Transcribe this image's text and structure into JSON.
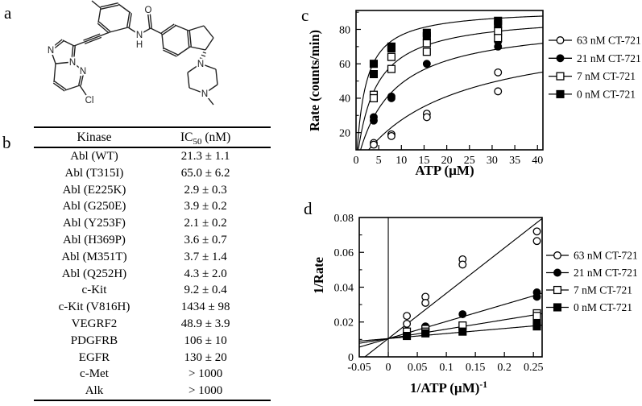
{
  "panels": {
    "a": {
      "label": "a",
      "molecule": {
        "atoms": [
          "N",
          "N",
          "N",
          "Cl",
          "N",
          "H",
          "O",
          "N",
          "N"
        ]
      }
    },
    "b": {
      "label": "b",
      "table": {
        "header_col1": "Kinase",
        "header_col2": {
          "base": "IC",
          "sub": "50",
          "rest": " (nM)"
        },
        "rows": [
          [
            "Abl (WT)",
            "21.3 ± 1.1"
          ],
          [
            "Abl (T315I)",
            "65.0 ± 6.2"
          ],
          [
            "Abl (E225K)",
            "2.9 ± 0.3"
          ],
          [
            "Abl (G250E)",
            "3.9 ± 0.2"
          ],
          [
            "Abl (Y253F)",
            "2.1 ± 0.2"
          ],
          [
            "Abl (H369P)",
            "3.6 ± 0.7"
          ],
          [
            "Abl (M351T)",
            "3.7 ± 1.4"
          ],
          [
            "Abl (Q252H)",
            "4.3 ± 2.0"
          ],
          [
            "c-Kit",
            "9.2 ± 0.4"
          ],
          [
            "c-Kit (V816H)",
            "1434 ± 98"
          ],
          [
            "VEGRF2",
            "48.9 ± 3.9"
          ],
          [
            "PDGFRB",
            "106 ± 10"
          ],
          [
            "EGFR",
            "130 ± 20"
          ],
          [
            "c-Met",
            "> 1000"
          ],
          [
            "Alk",
            "> 1000"
          ]
        ]
      }
    },
    "c": {
      "label": "c"
    },
    "d": {
      "label": "d"
    }
  },
  "chart_data": [
    {
      "panel": "c",
      "type": "scatter",
      "title": "",
      "xlabel": "ATP (µM)",
      "ylabel": "Rate (counts/min)",
      "xlim": [
        0,
        41.2
      ],
      "ylim": [
        10,
        91
      ],
      "xticks": [
        0,
        5,
        10,
        15,
        20,
        25,
        30,
        35,
        40
      ],
      "xtick_labels": [
        "0",
        "5",
        "10",
        "15",
        "20",
        "25",
        "30",
        "35",
        "40"
      ],
      "yticks": [
        20,
        40,
        60,
        80
      ],
      "ytick_labels": [
        "20",
        "40",
        "60",
        "80"
      ],
      "yminor": [
        30,
        50,
        70,
        90
      ],
      "grid": false,
      "legend_position": "right",
      "series": [
        {
          "name": "63 nM CT-721",
          "marker": "circle-open",
          "fit": {
            "type": "michaelis-menten",
            "vmax": 82,
            "km": 20
          },
          "points": [
            [
              3.9,
              14
            ],
            [
              3.9,
              13
            ],
            [
              7.8,
              19
            ],
            [
              7.8,
              18
            ],
            [
              15.6,
              31
            ],
            [
              15.6,
              29
            ],
            [
              31.3,
              55
            ],
            [
              31.3,
              44
            ]
          ]
        },
        {
          "name": "21 nM CT-721",
          "marker": "circle-filled",
          "fit": {
            "type": "michaelis-menten",
            "vmax": 85,
            "km": 7.5
          },
          "points": [
            [
              3.9,
              29
            ],
            [
              3.9,
              27
            ],
            [
              7.8,
              41
            ],
            [
              7.8,
              40
            ],
            [
              15.6,
              60
            ],
            [
              31.3,
              73
            ],
            [
              31.3,
              70
            ]
          ]
        },
        {
          "name": "7 nM CT-721",
          "marker": "square-open",
          "fit": {
            "type": "michaelis-menten",
            "vmax": 89,
            "km": 4
          },
          "points": [
            [
              3.9,
              42
            ],
            [
              3.9,
              40
            ],
            [
              7.8,
              64
            ],
            [
              7.8,
              57
            ],
            [
              15.6,
              72
            ],
            [
              15.6,
              67
            ],
            [
              31.3,
              79
            ],
            [
              31.3,
              75
            ]
          ]
        },
        {
          "name": "0 nM CT-721",
          "marker": "square-filled",
          "fit": {
            "type": "michaelis-menten",
            "vmax": 92,
            "km": 2
          },
          "points": [
            [
              3.9,
              60
            ],
            [
              3.9,
              54
            ],
            [
              7.8,
              70
            ],
            [
              7.8,
              69
            ],
            [
              15.6,
              78
            ],
            [
              15.6,
              76
            ],
            [
              31.3,
              85
            ],
            [
              31.3,
              83
            ]
          ]
        }
      ]
    },
    {
      "panel": "d",
      "type": "scatter",
      "title": "",
      "xlabel": "1/ATP (µM)",
      "xlabel_sup": "-1",
      "ylabel": "1/Rate",
      "xlim": [
        -0.05,
        0.265
      ],
      "ylim": [
        0,
        0.08
      ],
      "xticks": [
        -0.05,
        0,
        0.05,
        0.1,
        0.15,
        0.2,
        0.25
      ],
      "xtick_labels": [
        "-0.05",
        "0",
        "0.05",
        "0.1",
        "0.15",
        "0.2",
        "0.25"
      ],
      "yticks": [
        0,
        0.02,
        0.04,
        0.06,
        0.08
      ],
      "ytick_labels": [
        "0",
        "0.02",
        "0.04",
        "0.06",
        "0.08"
      ],
      "yminor": [
        0.01,
        0.03,
        0.05,
        0.07
      ],
      "refline_x": 0,
      "grid": false,
      "legend_position": "right",
      "series": [
        {
          "name": "63 nM CT-721",
          "marker": "circle-open",
          "fit": {
            "type": "linear",
            "slope": 0.26,
            "intercept": 0.0105
          },
          "points": [
            [
              0.032,
              0.0235
            ],
            [
              0.032,
              0.019
            ],
            [
              0.064,
              0.0345
            ],
            [
              0.064,
              0.031
            ],
            [
              0.128,
              0.056
            ],
            [
              0.128,
              0.053
            ],
            [
              0.256,
              0.072
            ],
            [
              0.256,
              0.0665
            ]
          ]
        },
        {
          "name": "21 nM CT-721",
          "marker": "circle-filled",
          "fit": {
            "type": "linear",
            "slope": 0.098,
            "intercept": 0.0105
          },
          "points": [
            [
              0.032,
              0.015
            ],
            [
              0.064,
              0.0175
            ],
            [
              0.064,
              0.0165
            ],
            [
              0.128,
              0.0245
            ],
            [
              0.256,
              0.037
            ],
            [
              0.256,
              0.0345
            ]
          ]
        },
        {
          "name": "7 nM CT-721",
          "marker": "square-open",
          "fit": {
            "type": "linear",
            "slope": 0.054,
            "intercept": 0.0105
          },
          "points": [
            [
              0.032,
              0.0145
            ],
            [
              0.064,
              0.016
            ],
            [
              0.064,
              0.0145
            ],
            [
              0.128,
              0.018
            ],
            [
              0.256,
              0.025
            ],
            [
              0.256,
              0.0235
            ]
          ]
        },
        {
          "name": "0 nM CT-721",
          "marker": "square-filled",
          "fit": {
            "type": "linear",
            "slope": 0.029,
            "intercept": 0.0105
          },
          "points": [
            [
              0.032,
              0.012
            ],
            [
              0.064,
              0.0135
            ],
            [
              0.128,
              0.0145
            ],
            [
              0.256,
              0.019
            ],
            [
              0.256,
              0.0175
            ]
          ]
        }
      ]
    }
  ]
}
